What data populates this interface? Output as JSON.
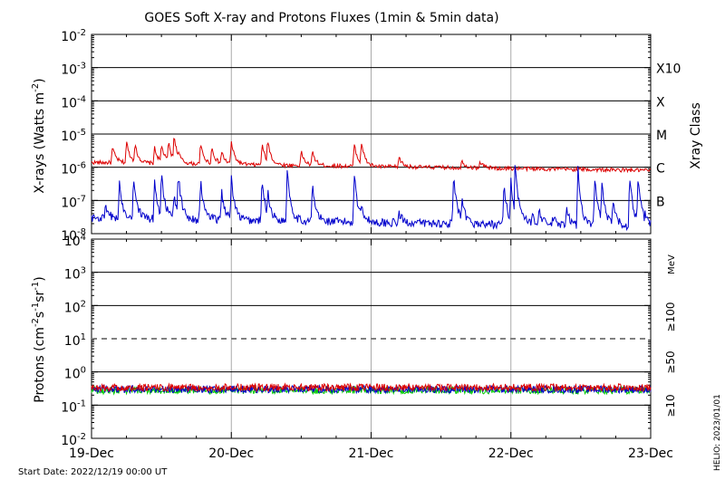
{
  "title": "GOES Soft X-ray and Protons Fluxes   (1min & 5min data)",
  "start_date": "Start Date: 2022/12/19 00:00 UT",
  "credit": "HELIO: 2023/01/01",
  "colors": {
    "red": "#dd0000",
    "blue": "#0000cc",
    "green": "#00cc00",
    "grid": "#000000",
    "day_grid": "#aaaaaa"
  },
  "chart_data": [
    {
      "name": "xray_panel",
      "type": "line",
      "ylabel_main": "X-rays (Watts m",
      "ylabel_sup": "-2",
      "ylabel_close": ")",
      "yscale": "log",
      "ylim": [
        1e-08,
        0.01
      ],
      "y_tick_exponents": [
        -8,
        -7,
        -6,
        -5,
        -4,
        -3,
        -2
      ],
      "y_tick_base": "10",
      "xray_classes": [
        {
          "label": "X10",
          "value": 0.001
        },
        {
          "label": "X",
          "value": 0.0001
        },
        {
          "label": "M",
          "value": 1e-05
        },
        {
          "label": "C",
          "value": 1e-06
        },
        {
          "label": "B",
          "value": 1e-07
        }
      ],
      "right_label": "Xray Class",
      "series": [
        {
          "color": "red",
          "baseline_start": 1.4e-06,
          "baseline_end": 8e-07,
          "peaks": [
            [
              0.15,
              4e-06
            ],
            [
              0.25,
              6e-06
            ],
            [
              0.31,
              5e-06
            ],
            [
              0.45,
              4e-06
            ],
            [
              0.5,
              5e-06
            ],
            [
              0.55,
              6e-06
            ],
            [
              0.59,
              1e-05
            ],
            [
              0.62,
              3e-06
            ],
            [
              0.78,
              5e-06
            ],
            [
              0.86,
              4e-06
            ],
            [
              0.93,
              3e-06
            ],
            [
              1.0,
              6e-06
            ],
            [
              1.22,
              5e-06
            ],
            [
              1.26,
              7e-06
            ],
            [
              1.5,
              3e-06
            ],
            [
              1.58,
              3e-06
            ],
            [
              1.88,
              5e-06
            ],
            [
              1.93,
              6e-06
            ],
            [
              2.2,
              2e-06
            ],
            [
              2.65,
              1.6e-06
            ],
            [
              2.78,
              1.5e-06
            ]
          ]
        },
        {
          "color": "blue",
          "baseline_start": 3e-08,
          "baseline_end": 1.6e-08,
          "peaks": [
            [
              0.1,
              6e-08
            ],
            [
              0.2,
              3e-07
            ],
            [
              0.3,
              5e-07
            ],
            [
              0.45,
              4e-07
            ],
            [
              0.5,
              8e-07
            ],
            [
              0.59,
              1.5e-07
            ],
            [
              0.62,
              7e-07
            ],
            [
              0.78,
              4e-07
            ],
            [
              0.93,
              2e-07
            ],
            [
              1.0,
              5e-07
            ],
            [
              1.22,
              4e-07
            ],
            [
              1.26,
              2e-07
            ],
            [
              1.4,
              1e-06
            ],
            [
              1.58,
              3e-07
            ],
            [
              1.88,
              7e-07
            ],
            [
              1.93,
              8e-08
            ],
            [
              2.2,
              4e-08
            ],
            [
              2.59,
              6e-07
            ],
            [
              2.65,
              1e-07
            ],
            [
              2.95,
              3e-07
            ],
            [
              3.0,
              4e-07
            ],
            [
              3.03,
              2e-06
            ],
            [
              3.08,
              5e-08
            ],
            [
              3.15,
              4e-08
            ],
            [
              3.2,
              6e-08
            ],
            [
              3.3,
              3e-08
            ],
            [
              3.4,
              5e-08
            ],
            [
              3.48,
              1e-06
            ],
            [
              3.6,
              5e-07
            ],
            [
              3.65,
              4e-07
            ],
            [
              3.73,
              1e-07
            ],
            [
              3.85,
              6e-07
            ],
            [
              3.91,
              7e-07
            ],
            [
              3.96,
              5e-08
            ],
            [
              4.0,
              3e-08
            ]
          ]
        }
      ]
    },
    {
      "name": "proton_panel",
      "type": "line",
      "ylabel_pre": "Protons (cm",
      "ylabel_sup1": "-2",
      "ylabel_mid": "s",
      "ylabel_sup2": "-1",
      "ylabel_mid2": "sr",
      "ylabel_sup3": "-1",
      "ylabel_close": ")",
      "yscale": "log",
      "ylim": [
        0.01,
        10000
      ],
      "y_tick_exponents": [
        -2,
        -1,
        0,
        1,
        2,
        3,
        4
      ],
      "y_tick_base": "10",
      "threshold": 10,
      "unit_label": "MeV",
      "series": [
        {
          "name": "≥100",
          "color": "green",
          "level": 0.28
        },
        {
          "name": "≥50",
          "color": "blue",
          "level": 0.3
        },
        {
          "name": "≥10",
          "color": "red",
          "level": 0.34
        }
      ]
    }
  ],
  "x_axis": {
    "type": "date",
    "xlim": [
      "2022-12-19",
      "2022-12-23"
    ],
    "tick_labels": [
      "19-Dec",
      "20-Dec",
      "21-Dec",
      "22-Dec",
      "23-Dec"
    ]
  }
}
